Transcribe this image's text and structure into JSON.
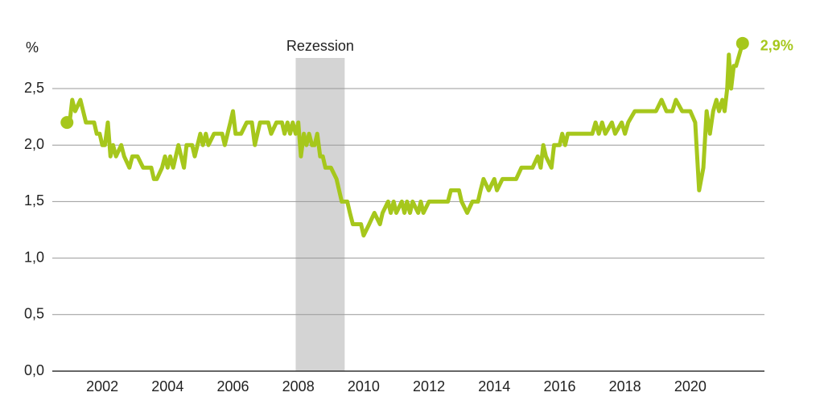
{
  "chart_data": {
    "type": "line",
    "y_unit": "%",
    "color": "#a6c71c",
    "recession": {
      "label": "Rezession",
      "start": 2007.92,
      "end": 2009.42
    },
    "x": [
      2000.92,
      2001.0,
      2001.08,
      2001.17,
      2001.33,
      2001.5,
      2001.75,
      2001.83,
      2001.92,
      2002.0,
      2002.08,
      2002.17,
      2002.25,
      2002.33,
      2002.42,
      2002.58,
      2002.67,
      2002.83,
      2002.92,
      2003.08,
      2003.25,
      2003.5,
      2003.58,
      2003.67,
      2003.83,
      2003.92,
      2004.0,
      2004.08,
      2004.17,
      2004.33,
      2004.5,
      2004.58,
      2004.75,
      2004.83,
      2005.0,
      2005.08,
      2005.17,
      2005.25,
      2005.42,
      2005.67,
      2005.75,
      2005.92,
      2006.0,
      2006.08,
      2006.25,
      2006.42,
      2006.58,
      2006.67,
      2006.83,
      2007.08,
      2007.17,
      2007.33,
      2007.5,
      2007.58,
      2007.67,
      2007.75,
      2007.83,
      2007.92,
      2008.0,
      2008.08,
      2008.17,
      2008.25,
      2008.33,
      2008.42,
      2008.5,
      2008.58,
      2008.67,
      2008.75,
      2008.83,
      2009.0,
      2009.17,
      2009.33,
      2009.5,
      2009.58,
      2009.67,
      2009.92,
      2010.0,
      2010.17,
      2010.33,
      2010.5,
      2010.58,
      2010.75,
      2010.83,
      2010.92,
      2011.0,
      2011.17,
      2011.25,
      2011.33,
      2011.42,
      2011.5,
      2011.67,
      2011.75,
      2011.83,
      2012.0,
      2012.58,
      2012.67,
      2012.92,
      2013.0,
      2013.17,
      2013.33,
      2013.5,
      2013.58,
      2013.67,
      2013.83,
      2014.0,
      2014.08,
      2014.25,
      2014.67,
      2014.83,
      2015.17,
      2015.33,
      2015.42,
      2015.5,
      2015.58,
      2015.75,
      2015.83,
      2016.0,
      2016.08,
      2016.17,
      2016.25,
      2017.0,
      2017.1,
      2017.2,
      2017.3,
      2017.4,
      2017.6,
      2017.7,
      2017.9,
      2018.0,
      2018.1,
      2018.3,
      2018.95,
      2019.12,
      2019.27,
      2019.45,
      2019.56,
      2019.75,
      2020.0,
      2020.15,
      2020.27,
      2020.4,
      2020.5,
      2020.6,
      2020.7,
      2020.8,
      2020.88,
      2020.98,
      2021.05,
      2021.13,
      2021.18,
      2021.25,
      2021.33,
      2021.4,
      2021.6
    ],
    "values": [
      2.2,
      2.2,
      2.4,
      2.3,
      2.4,
      2.2,
      2.2,
      2.1,
      2.1,
      2.0,
      2.0,
      2.2,
      1.9,
      2.0,
      1.9,
      2.0,
      1.9,
      1.8,
      1.9,
      1.9,
      1.8,
      1.8,
      1.7,
      1.7,
      1.8,
      1.9,
      1.8,
      1.9,
      1.8,
      2.0,
      1.8,
      2.0,
      2.0,
      1.9,
      2.1,
      2.0,
      2.1,
      2.0,
      2.1,
      2.1,
      2.0,
      2.2,
      2.3,
      2.1,
      2.1,
      2.2,
      2.2,
      2.0,
      2.2,
      2.2,
      2.1,
      2.2,
      2.2,
      2.1,
      2.2,
      2.1,
      2.2,
      2.1,
      2.2,
      1.9,
      2.1,
      2.0,
      2.1,
      2.0,
      2.0,
      2.1,
      1.9,
      1.9,
      1.8,
      1.8,
      1.7,
      1.5,
      1.5,
      1.4,
      1.3,
      1.3,
      1.2,
      1.3,
      1.4,
      1.3,
      1.4,
      1.5,
      1.4,
      1.5,
      1.4,
      1.5,
      1.4,
      1.5,
      1.4,
      1.5,
      1.4,
      1.5,
      1.4,
      1.5,
      1.5,
      1.6,
      1.6,
      1.5,
      1.4,
      1.5,
      1.5,
      1.6,
      1.7,
      1.6,
      1.7,
      1.6,
      1.7,
      1.7,
      1.8,
      1.8,
      1.9,
      1.8,
      2.0,
      1.9,
      1.8,
      2.0,
      2.0,
      2.1,
      2.0,
      2.1,
      2.1,
      2.2,
      2.1,
      2.2,
      2.1,
      2.2,
      2.1,
      2.2,
      2.1,
      2.2,
      2.3,
      2.3,
      2.4,
      2.3,
      2.3,
      2.4,
      2.3,
      2.3,
      2.2,
      1.6,
      1.8,
      2.3,
      2.1,
      2.3,
      2.4,
      2.3,
      2.4,
      2.3,
      2.5,
      2.8,
      2.5,
      2.7,
      2.7,
      2.9
    ],
    "value_labels": [
      null,
      null,
      null,
      null,
      null,
      null,
      null,
      null,
      null,
      null,
      null,
      null,
      null,
      null,
      null,
      null,
      null,
      null,
      null,
      null,
      null,
      null,
      null,
      null,
      null,
      null,
      null,
      null,
      null,
      null,
      null,
      null,
      null,
      null,
      null,
      null,
      null,
      null,
      null,
      null,
      null,
      null,
      null,
      null,
      null,
      null,
      null,
      null,
      null,
      null,
      null,
      null,
      null,
      null,
      null,
      null,
      null,
      null,
      null,
      null,
      null,
      null,
      null,
      null,
      null,
      null,
      null,
      null,
      null,
      null,
      null,
      null,
      null,
      null,
      null,
      null,
      null,
      null,
      null,
      null,
      null,
      null,
      null,
      null,
      null,
      null,
      null,
      null,
      null,
      null,
      null,
      null,
      null,
      null,
      null,
      null,
      null,
      null,
      null,
      null,
      null,
      null,
      null,
      null,
      null,
      null,
      null,
      null,
      null,
      null,
      null,
      null,
      null,
      null,
      null,
      null,
      null,
      null,
      null,
      null,
      null,
      null,
      null,
      null,
      null,
      null,
      null,
      null,
      null,
      null,
      null,
      null,
      null,
      null,
      null,
      null,
      null,
      null,
      null,
      null,
      null,
      null,
      null,
      null,
      null,
      null,
      null,
      null,
      null,
      null,
      null,
      null,
      null,
      "2,9%"
    ],
    "xlim": [
      2000.47,
      2022.27
    ],
    "xticks": [
      2002,
      2004,
      2006,
      2008,
      2010,
      2012,
      2014,
      2016,
      2018,
      2020
    ],
    "ylim": [
      0,
      2.8
    ],
    "yticks": [
      {
        "value": 0,
        "label": "0,0"
      },
      {
        "value": 0.5,
        "label": "0,5"
      },
      {
        "value": 1,
        "label": "1,0"
      },
      {
        "value": 1.5,
        "label": "1,5"
      },
      {
        "value": 2,
        "label": "2,0"
      },
      {
        "value": 2.5,
        "label": "2,5"
      }
    ],
    "grid": true
  }
}
